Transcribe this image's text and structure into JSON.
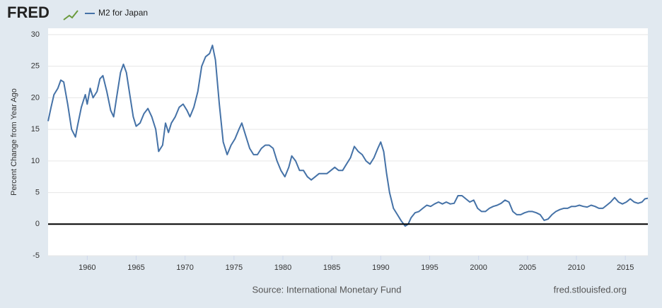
{
  "chart_data": {
    "type": "line",
    "logo": "FRED",
    "y_label": "Percent Change from Year Ago",
    "source": "Source: International Monetary Fund",
    "site": "fred.stlouisfed.org",
    "xlim": [
      1956,
      2017.3
    ],
    "xticks": [
      1960,
      1965,
      1970,
      1975,
      1980,
      1985,
      1990,
      1995,
      2000,
      2005,
      2010,
      2015
    ],
    "ylim": [
      -5,
      30
    ],
    "yticks": [
      -5,
      0,
      5,
      10,
      15,
      20,
      25,
      30
    ],
    "grid": true,
    "zero_line": true,
    "x": [
      1956.0,
      1956.3,
      1956.6,
      1957.0,
      1957.3,
      1957.6,
      1958.0,
      1958.4,
      1958.8,
      1959.0,
      1959.4,
      1959.8,
      1960.0,
      1960.3,
      1960.6,
      1961.0,
      1961.3,
      1961.6,
      1962.0,
      1962.4,
      1962.7,
      1963.0,
      1963.4,
      1963.7,
      1964.0,
      1964.4,
      1964.7,
      1965.0,
      1965.4,
      1965.8,
      1966.2,
      1966.6,
      1967.0,
      1967.3,
      1967.7,
      1968.0,
      1968.3,
      1968.6,
      1969.0,
      1969.4,
      1969.8,
      1970.2,
      1970.5,
      1970.9,
      1971.3,
      1971.7,
      1972.1,
      1972.5,
      1972.8,
      1973.1,
      1973.5,
      1973.9,
      1974.3,
      1974.7,
      1975.1,
      1975.5,
      1975.8,
      1976.2,
      1976.6,
      1977.0,
      1977.4,
      1977.8,
      1978.2,
      1978.6,
      1979.0,
      1979.4,
      1979.8,
      1980.2,
      1980.6,
      1980.9,
      1981.3,
      1981.7,
      1982.1,
      1982.5,
      1982.9,
      1983.3,
      1983.7,
      1984.1,
      1984.5,
      1984.9,
      1985.3,
      1985.7,
      1986.1,
      1986.5,
      1986.9,
      1987.3,
      1987.7,
      1988.1,
      1988.5,
      1988.9,
      1989.3,
      1989.7,
      1990.0,
      1990.3,
      1990.6,
      1990.9,
      1991.3,
      1991.7,
      1992.1,
      1992.5,
      1992.8,
      1993.1,
      1993.5,
      1993.9,
      1994.3,
      1994.7,
      1995.1,
      1995.5,
      1995.9,
      1996.3,
      1996.7,
      1997.1,
      1997.5,
      1997.9,
      1998.3,
      1998.7,
      1999.1,
      1999.5,
      1999.9,
      2000.3,
      2000.7,
      2001.1,
      2001.5,
      2001.9,
      2002.3,
      2002.7,
      2003.1,
      2003.5,
      2003.9,
      2004.3,
      2004.7,
      2005.1,
      2005.5,
      2005.9,
      2006.3,
      2006.7,
      2007.1,
      2007.5,
      2007.9,
      2008.3,
      2008.7,
      2009.1,
      2009.5,
      2009.9,
      2010.3,
      2010.7,
      2011.1,
      2011.5,
      2011.9,
      2012.3,
      2012.7,
      2013.1,
      2013.5,
      2013.9,
      2014.3,
      2014.7,
      2015.1,
      2015.5,
      2015.9,
      2016.3,
      2016.7,
      2017.0,
      2017.3
    ],
    "series": [
      {
        "name": "M2 for Japan",
        "color": "#4572a7",
        "values": [
          16.3,
          18.5,
          20.5,
          21.5,
          22.8,
          22.5,
          19,
          15,
          13.8,
          15.5,
          18.5,
          20.5,
          19,
          21.5,
          20,
          21,
          23,
          23.5,
          21,
          18,
          17,
          20,
          24,
          25.3,
          24,
          20,
          17,
          15.5,
          16,
          17.5,
          18.3,
          17,
          15,
          11.5,
          12.5,
          16,
          14.5,
          16,
          17,
          18.5,
          19,
          18,
          17,
          18.5,
          21,
          25,
          26.5,
          27,
          28.3,
          26,
          19,
          13,
          11,
          12.5,
          13.5,
          15,
          16,
          14,
          12,
          11,
          11,
          12,
          12.5,
          12.5,
          12,
          10,
          8.5,
          7.5,
          9,
          10.8,
          10,
          8.5,
          8.5,
          7.5,
          7,
          7.5,
          8,
          8,
          8,
          8.5,
          9,
          8.5,
          8.5,
          9.5,
          10.5,
          12.3,
          11.5,
          11,
          10,
          9.5,
          10.5,
          12,
          13,
          11.5,
          8,
          5,
          2.5,
          1.5,
          0.5,
          -0.3,
          0,
          1,
          1.8,
          2,
          2.5,
          3,
          2.8,
          3.2,
          3.5,
          3.2,
          3.5,
          3.2,
          3.3,
          4.5,
          4.5,
          4,
          3.5,
          3.8,
          2.5,
          2,
          2,
          2.5,
          2.8,
          3,
          3.3,
          3.8,
          3.5,
          2,
          1.5,
          1.5,
          1.8,
          2,
          2,
          1.8,
          1.5,
          0.6,
          0.8,
          1.5,
          2,
          2.3,
          2.5,
          2.5,
          2.8,
          2.8,
          3,
          2.8,
          2.7,
          3,
          2.8,
          2.5,
          2.5,
          3,
          3.5,
          4.2,
          3.5,
          3.2,
          3.5,
          4,
          3.5,
          3.3,
          3.5,
          4,
          4.1
        ]
      }
    ]
  }
}
